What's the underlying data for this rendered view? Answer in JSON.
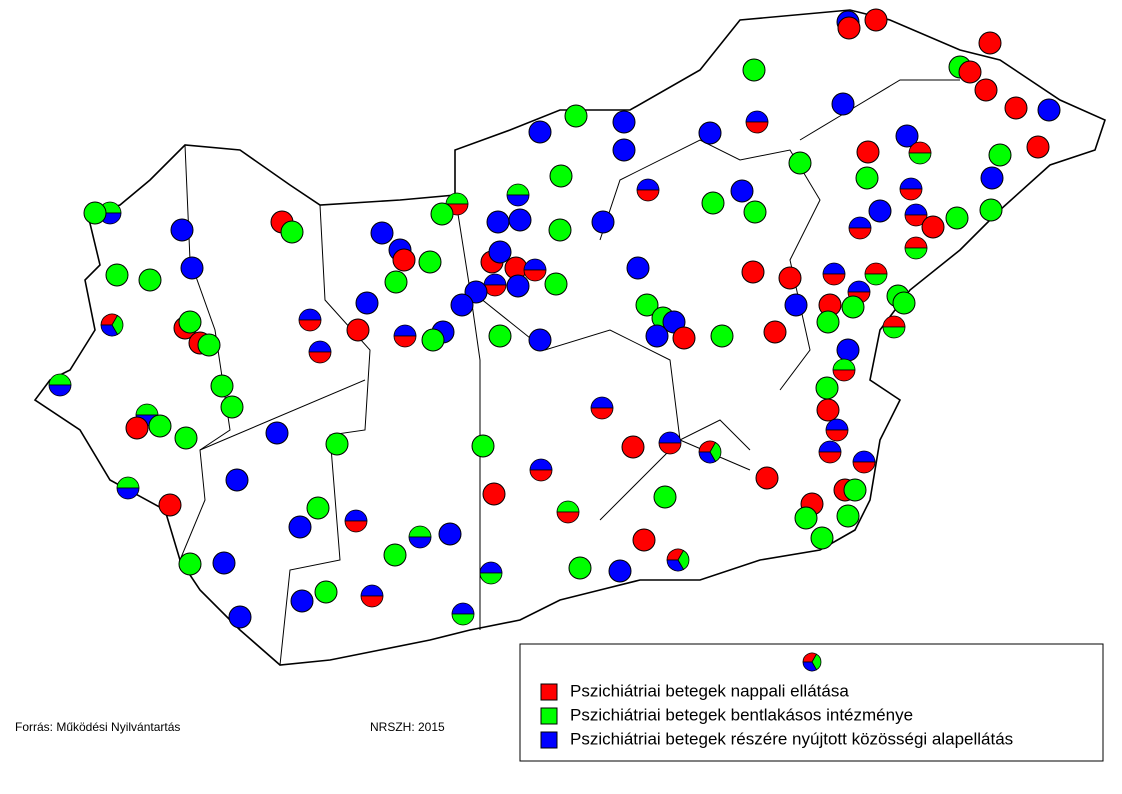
{
  "legend": {
    "items": [
      {
        "label": "Pszichiátriai betegek nappali ellátása",
        "color": "#ff0000"
      },
      {
        "label": "Pszichiátriai betegek bentlakásos intézménye",
        "color": "#00ff00"
      },
      {
        "label": "Pszichiátriai betegek részére nyújtott közösségi alapellátás",
        "color": "#0000ff"
      }
    ]
  },
  "footer": {
    "source": "Forrás: Működési Nyilvántartás",
    "credit": "NRSZH: 2015"
  }
}
